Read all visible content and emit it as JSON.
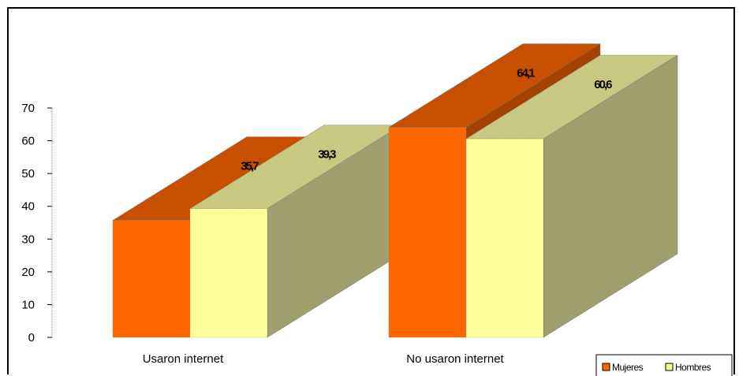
{
  "chart_data": {
    "type": "bar",
    "title": "",
    "xlabel": "",
    "ylabel": "",
    "ylim": [
      0,
      70
    ],
    "yticks": [
      0,
      10,
      20,
      30,
      40,
      50,
      60,
      70
    ],
    "categories": [
      "Usaron internet",
      "No usaron internet"
    ],
    "series": [
      {
        "name": "Mujeres",
        "values": [
          35.7,
          64.1
        ],
        "data_labels": [
          "35,7",
          "64,1"
        ],
        "color": "#FF6600"
      },
      {
        "name": "Hombres",
        "values": [
          39.3,
          60.6
        ],
        "data_labels": [
          "39,3",
          "60,6"
        ],
        "color": "#FFFF99"
      }
    ],
    "legend_position": "bottom-right",
    "grid": false,
    "three_d": true
  }
}
